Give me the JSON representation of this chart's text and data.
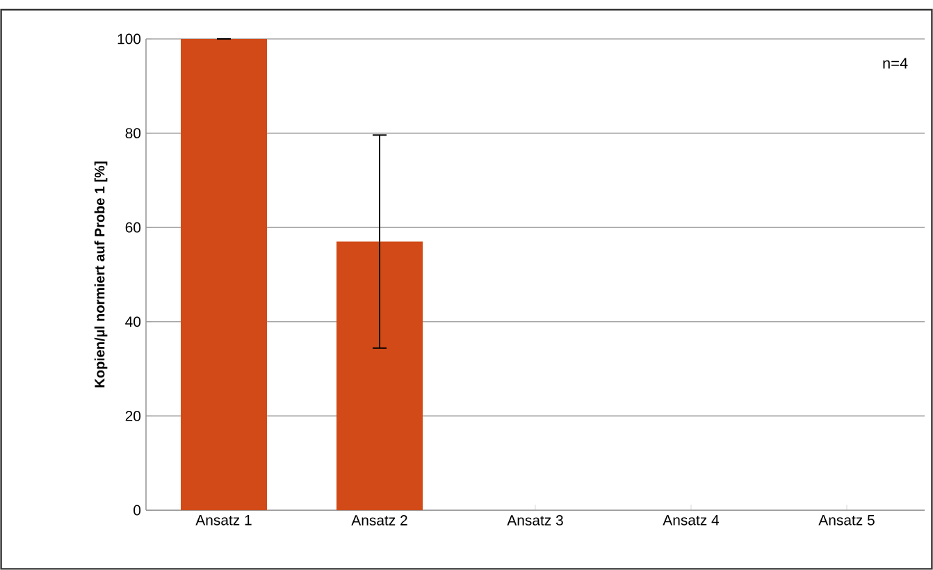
{
  "chart_data": {
    "type": "bar",
    "ylabel": "**Kopien/µl normiert auf Probe 1 [%]**",
    "categories": [
      "Ansatz 1",
      "Ansatz 2",
      "Ansatz 3",
      "Ansatz 4",
      "Ansatz 5"
    ],
    "values": [
      100,
      57,
      0,
      0,
      0
    ],
    "errors": [
      0,
      22.6,
      null,
      null,
      null
    ],
    "color": "#d24a17",
    "ylim": [
      0,
      100
    ],
    "yticks": [
      0,
      20,
      40,
      60,
      80,
      100
    ],
    "grid": "y",
    "annotations": [
      "n=4"
    ]
  }
}
